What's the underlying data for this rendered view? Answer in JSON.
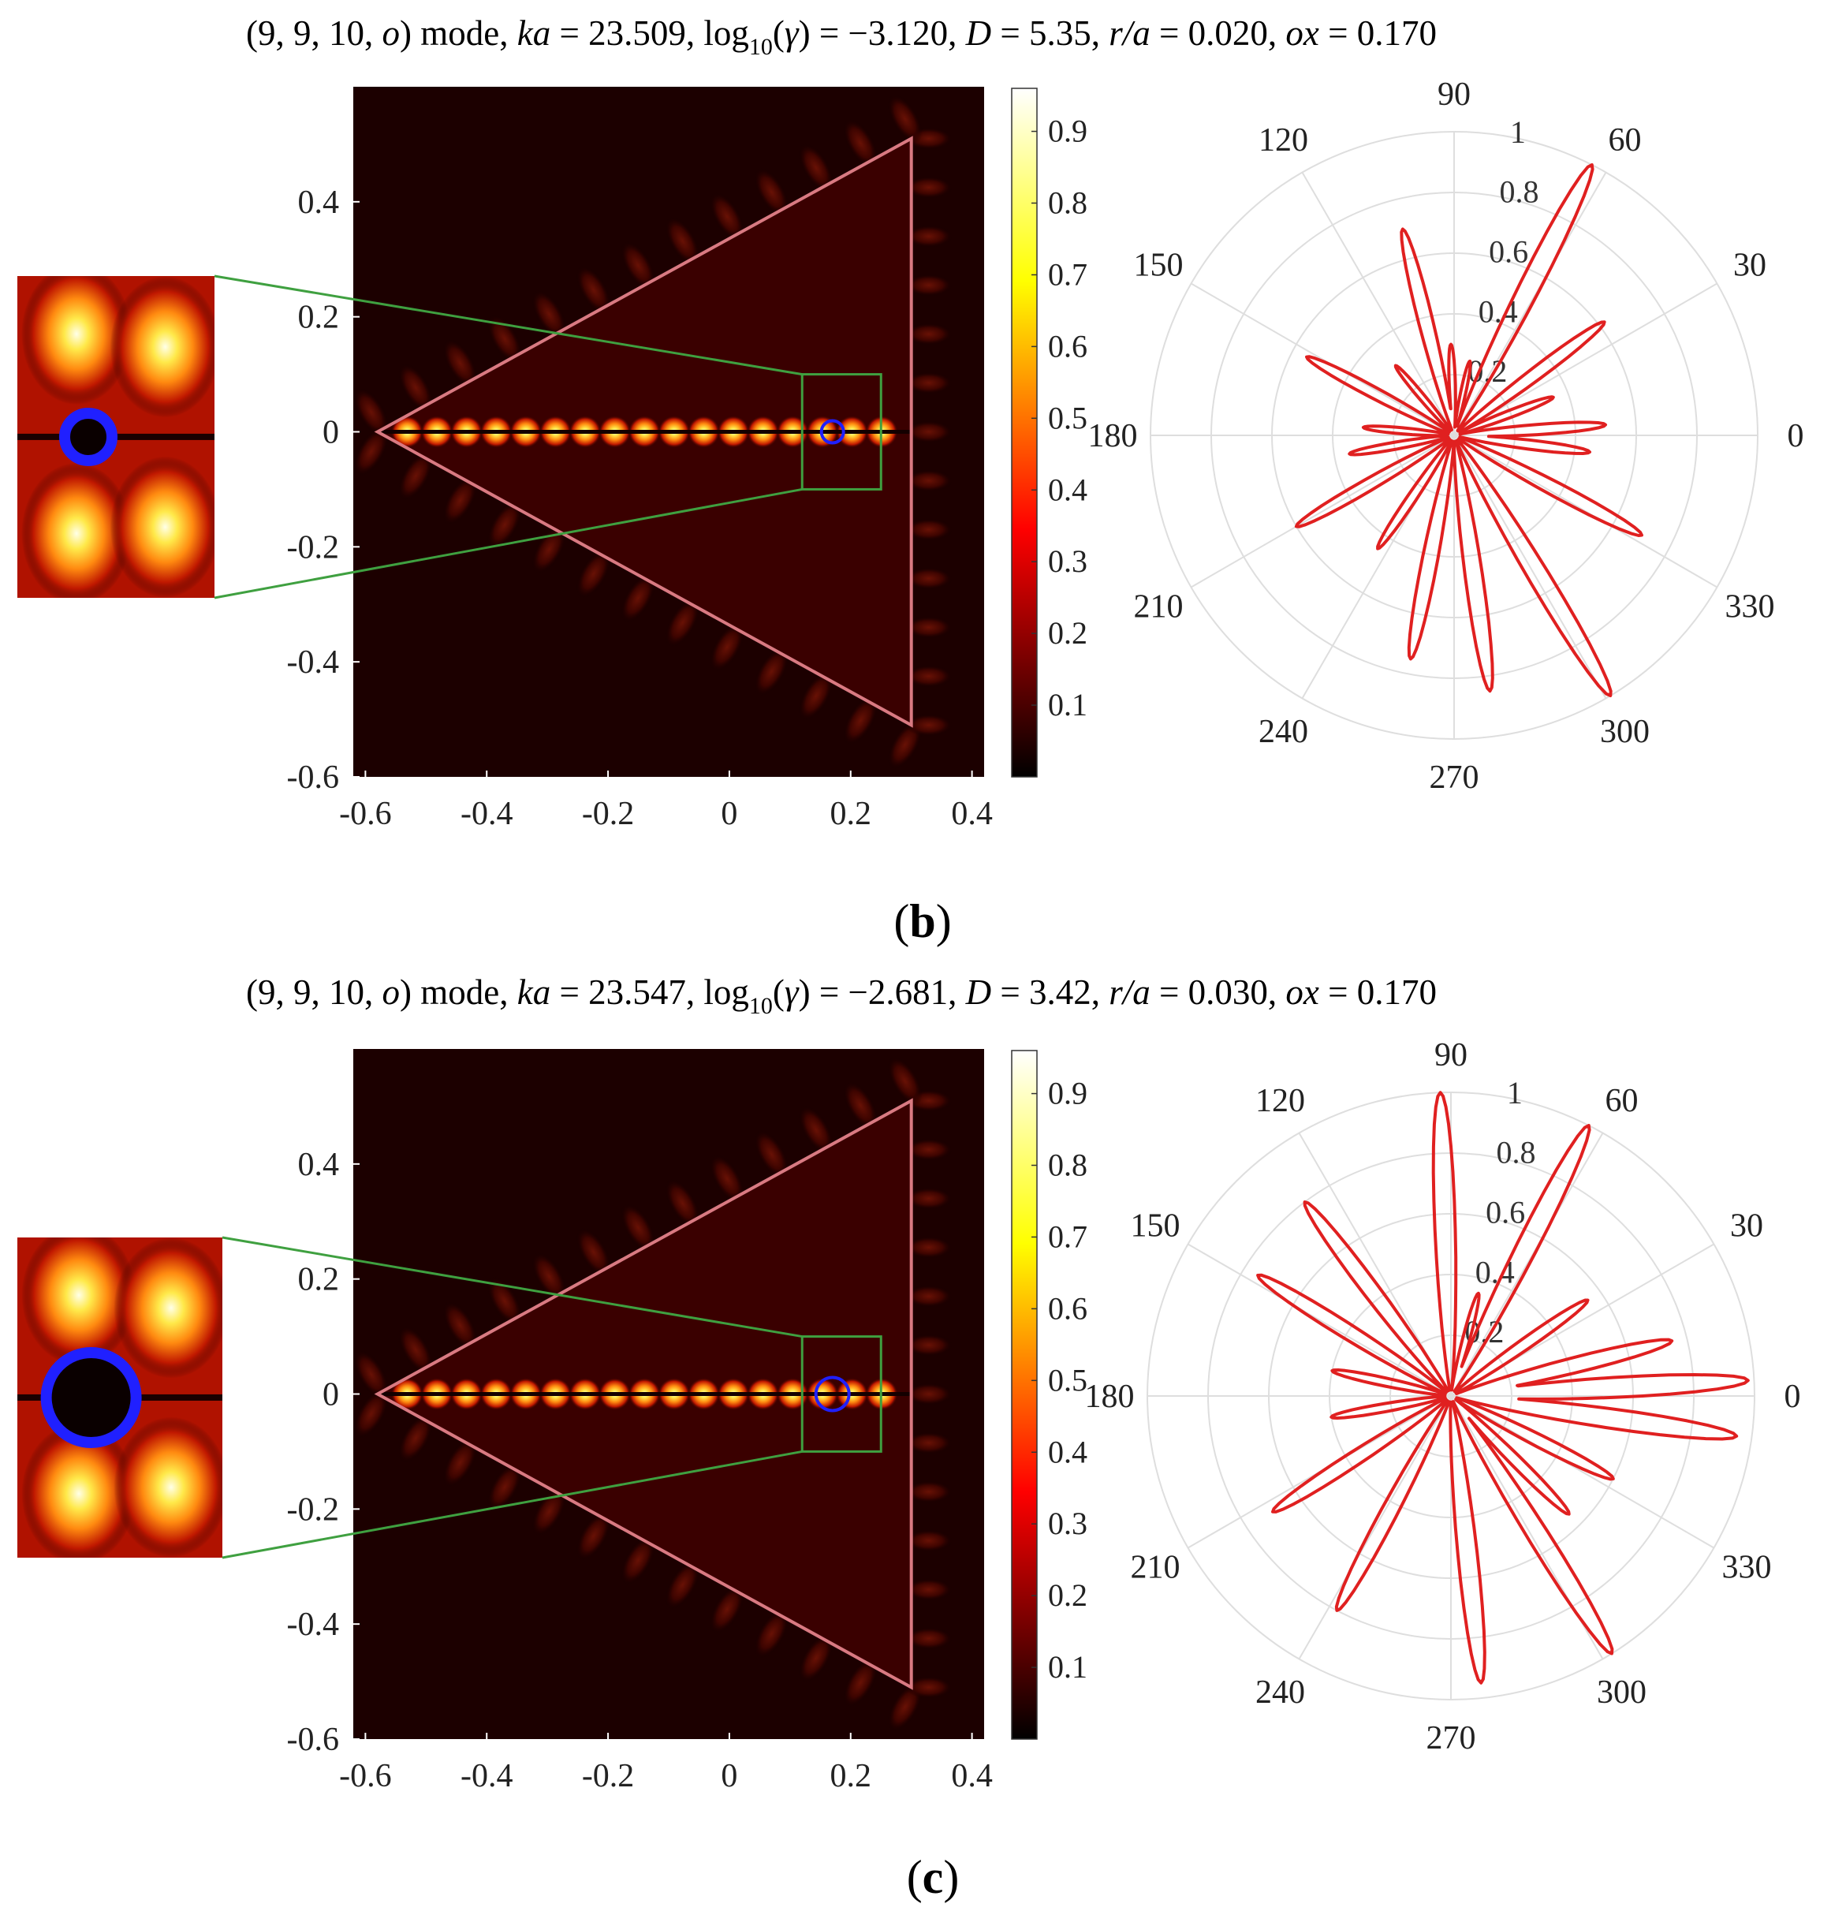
{
  "panels": [
    {
      "label_letter": "b",
      "title_segments": [
        {
          "t": "(9, 9, 10, ",
          "i": false
        },
        {
          "t": "o",
          "i": true
        },
        {
          "t": ") mode,  ",
          "i": false
        },
        {
          "t": "ka",
          "i": true
        },
        {
          "t": " = 23.509,  log",
          "i": false
        },
        {
          "t": "10",
          "i": false,
          "sub": true
        },
        {
          "t": "(",
          "i": false
        },
        {
          "t": "γ",
          "i": true
        },
        {
          "t": ") = −3.120, ",
          "i": false
        },
        {
          "t": "D",
          "i": true
        },
        {
          "t": " = 5.35, ",
          "i": false
        },
        {
          "t": "r/a",
          "i": true
        },
        {
          "t": " = 0.020, ",
          "i": false
        },
        {
          "t": "ox",
          "i": true
        },
        {
          "t": " = 0.170",
          "i": false
        }
      ],
      "heatmap": {
        "x_ticks": [
          "-0.6",
          "-0.4",
          "-0.2",
          "0",
          "0.2",
          "0.4"
        ],
        "y_ticks": [
          "0.4",
          "0.2",
          "0",
          "-0.2",
          "-0.4",
          "-0.6"
        ],
        "xlim": [
          -0.62,
          0.42
        ],
        "ylim": [
          -0.6,
          0.6
        ],
        "triangle_vertices": [
          [
            -0.58,
            0.0
          ],
          [
            0.3,
            0.51
          ],
          [
            0.3,
            -0.51
          ]
        ],
        "zoom_box": {
          "x": [
            0.12,
            0.25
          ],
          "y": [
            -0.1,
            0.1
          ]
        },
        "scatterer": {
          "x": 0.17,
          "y": 0.0,
          "r_over_a": 0.02
        }
      },
      "colorbar": {
        "ticks": [
          "0.9",
          "0.8",
          "0.7",
          "0.6",
          "0.5",
          "0.4",
          "0.3",
          "0.2",
          "0.1"
        ],
        "range": [
          0,
          0.96
        ]
      },
      "polar": {
        "angle_ticks": [
          "0",
          "30",
          "60",
          "90",
          "120",
          "150",
          "180",
          "210",
          "240",
          "270",
          "300",
          "330"
        ],
        "radial_ticks": [
          "0.2",
          "0.4",
          "0.6",
          "0.8",
          "1"
        ],
        "lobes": [
          [
            63,
            1.0
          ],
          [
            37,
            0.62
          ],
          [
            21,
            0.35
          ],
          [
            4,
            0.5
          ],
          [
            -7,
            0.45
          ],
          [
            -28,
            0.7
          ],
          [
            -59,
            1.0
          ],
          [
            -82,
            0.85
          ],
          [
            -101,
            0.75
          ],
          [
            -124,
            0.45
          ],
          [
            -150,
            0.6
          ],
          [
            -170,
            0.35
          ],
          [
            -185,
            0.3
          ],
          [
            152,
            0.55
          ],
          [
            130,
            0.3
          ],
          [
            104,
            0.7
          ],
          [
            92,
            0.3
          ],
          [
            78,
            0.25
          ]
        ]
      }
    },
    {
      "label_letter": "c",
      "title_segments": [
        {
          "t": "(9, 9, 10, ",
          "i": false
        },
        {
          "t": "o",
          "i": true
        },
        {
          "t": ") mode,  ",
          "i": false
        },
        {
          "t": "ka",
          "i": true
        },
        {
          "t": " = 23.547,  log",
          "i": false
        },
        {
          "t": "10",
          "i": false,
          "sub": true
        },
        {
          "t": "(",
          "i": false
        },
        {
          "t": "γ",
          "i": true
        },
        {
          "t": ") = −2.681, ",
          "i": false
        },
        {
          "t": "D",
          "i": true
        },
        {
          "t": " = 3.42, ",
          "i": false
        },
        {
          "t": "r/a",
          "i": true
        },
        {
          "t": " = 0.030, ",
          "i": false
        },
        {
          "t": "ox",
          "i": true
        },
        {
          "t": " = 0.170",
          "i": false
        }
      ],
      "heatmap": {
        "x_ticks": [
          "-0.6",
          "-0.4",
          "-0.2",
          "0",
          "0.2",
          "0.4"
        ],
        "y_ticks": [
          "0.4",
          "0.2",
          "0",
          "-0.2",
          "-0.4",
          "-0.6"
        ],
        "xlim": [
          -0.62,
          0.42
        ],
        "ylim": [
          -0.6,
          0.6
        ],
        "triangle_vertices": [
          [
            -0.58,
            0.0
          ],
          [
            0.3,
            0.51
          ],
          [
            0.3,
            -0.51
          ]
        ],
        "zoom_box": {
          "x": [
            0.12,
            0.25
          ],
          "y": [
            -0.1,
            0.1
          ]
        },
        "scatterer": {
          "x": 0.17,
          "y": 0.0,
          "r_over_a": 0.03
        }
      },
      "colorbar": {
        "ticks": [
          "0.9",
          "0.8",
          "0.7",
          "0.6",
          "0.5",
          "0.4",
          "0.3",
          "0.2",
          "0.1"
        ],
        "range": [
          0,
          0.96
        ]
      },
      "polar": {
        "angle_ticks": [
          "0",
          "30",
          "60",
          "90",
          "120",
          "150",
          "180",
          "210",
          "240",
          "270",
          "300",
          "330"
        ],
        "radial_ticks": [
          "0.2",
          "0.4",
          "0.6",
          "0.8",
          "1"
        ],
        "lobes": [
          [
            63,
            1.0
          ],
          [
            35,
            0.55
          ],
          [
            14,
            0.75
          ],
          [
            3,
            0.98
          ],
          [
            -8,
            0.95
          ],
          [
            -27,
            0.6
          ],
          [
            -45,
            0.55
          ],
          [
            -58,
            1.0
          ],
          [
            -84,
            0.95
          ],
          [
            -118,
            0.8
          ],
          [
            -147,
            0.7
          ],
          [
            -170,
            0.4
          ],
          [
            168,
            0.4
          ],
          [
            148,
            0.75
          ],
          [
            127,
            0.8
          ],
          [
            92,
            1.0
          ],
          [
            75,
            0.35
          ]
        ]
      }
    }
  ]
}
